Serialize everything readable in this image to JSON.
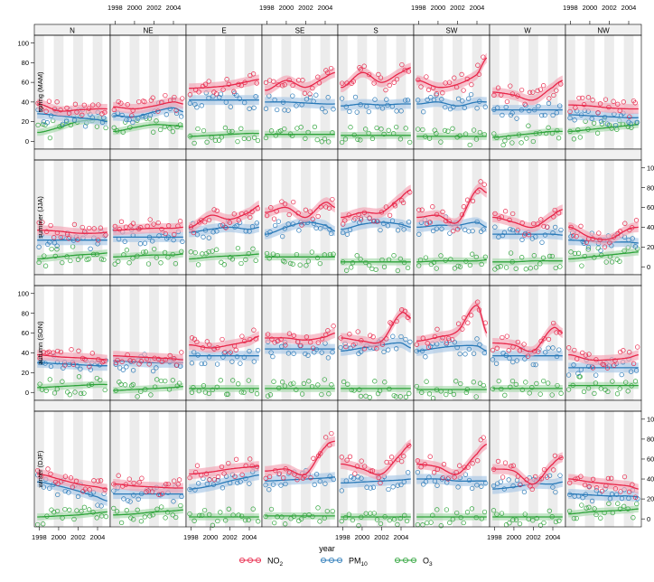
{
  "chart_data": {
    "type": "scatter",
    "description_type": "trellis scatter with smooth fits and confidence bands",
    "columns": [
      "N",
      "NE",
      "E",
      "SE",
      "S",
      "SW",
      "W",
      "NW"
    ],
    "rows": [
      "spring (MAM)",
      "summer (JJA)",
      "autumn (SON)",
      "winter (DJF)"
    ],
    "xlabel": "year",
    "x_ticks": [
      "1998",
      "2000",
      "2002",
      "2004"
    ],
    "xlim": [
      1997.5,
      2005.3
    ],
    "ylim": [
      -8,
      108
    ],
    "y_ticks": [
      "0",
      "20",
      "40",
      "60",
      "80",
      "100"
    ],
    "legend": {
      "placement": "bottom",
      "items": [
        {
          "base": "NO",
          "sub": "2",
          "key": "no2"
        },
        {
          "base": "PM",
          "sub": "10",
          "key": "pm10"
        },
        {
          "base": "O",
          "sub": "3",
          "key": "o3"
        }
      ]
    },
    "colors": {
      "no2": "#e8274a",
      "pm10": "#2a7ab8",
      "o3": "#2ea33a",
      "no2_band": "#f4a3b3",
      "pm10_band": "#a9c8e6",
      "o3_band": "#a6d9aa",
      "strip": "#f0f0f0",
      "stripe": "#ececec"
    },
    "trend_knots_x": [
      1998,
      2000,
      2002,
      2004,
      2005
    ],
    "panels": [
      {
        "row": 0,
        "col": 0,
        "no2": [
          38,
          31,
          32,
          33,
          33
        ],
        "pm10": [
          28,
          26,
          24,
          22,
          20
        ],
        "o3": [
          9,
          14,
          20,
          22,
          21
        ]
      },
      {
        "row": 0,
        "col": 1,
        "no2": [
          35,
          33,
          36,
          40,
          38
        ],
        "pm10": [
          26,
          25,
          30,
          34,
          30
        ],
        "o3": [
          10,
          14,
          17,
          16,
          15
        ]
      },
      {
        "row": 0,
        "col": 2,
        "no2": [
          54,
          55,
          57,
          61,
          63
        ],
        "pm10": [
          42,
          42,
          42,
          42,
          42
        ],
        "o3": [
          5,
          6,
          7,
          8,
          8
        ]
      },
      {
        "row": 0,
        "col": 3,
        "no2": [
          52,
          62,
          55,
          65,
          70
        ],
        "pm10": [
          40,
          40,
          39,
          38,
          38
        ],
        "o3": [
          7,
          7,
          7,
          7,
          7
        ]
      },
      {
        "row": 0,
        "col": 4,
        "no2": [
          55,
          70,
          60,
          70,
          75
        ],
        "pm10": [
          36,
          38,
          37,
          38,
          38
        ],
        "o3": [
          6,
          6,
          6,
          6,
          6
        ]
      },
      {
        "row": 0,
        "col": 5,
        "no2": [
          62,
          55,
          58,
          68,
          85
        ],
        "pm10": [
          38,
          40,
          36,
          40,
          40
        ],
        "o3": [
          5,
          5,
          5,
          5,
          5
        ]
      },
      {
        "row": 0,
        "col": 6,
        "no2": [
          50,
          47,
          42,
          55,
          62
        ],
        "pm10": [
          32,
          32,
          32,
          32,
          32
        ],
        "o3": [
          4,
          6,
          8,
          10,
          10
        ]
      },
      {
        "row": 0,
        "col": 7,
        "no2": [
          37,
          36,
          34,
          33,
          33
        ],
        "pm10": [
          27,
          26,
          25,
          24,
          24
        ],
        "o3": [
          10,
          12,
          14,
          16,
          17
        ]
      },
      {
        "row": 1,
        "col": 0,
        "no2": [
          37,
          36,
          34,
          34,
          35
        ],
        "pm10": [
          27,
          27,
          27,
          27,
          27
        ],
        "o3": [
          8,
          10,
          12,
          13,
          14
        ]
      },
      {
        "row": 1,
        "col": 1,
        "no2": [
          37,
          38,
          39,
          39,
          40
        ],
        "pm10": [
          30,
          30,
          30,
          30,
          30
        ],
        "o3": [
          10,
          11,
          12,
          12,
          13
        ]
      },
      {
        "row": 1,
        "col": 2,
        "no2": [
          40,
          52,
          48,
          55,
          62
        ],
        "pm10": [
          35,
          38,
          40,
          38,
          40
        ],
        "o3": [
          8,
          10,
          11,
          12,
          13
        ]
      },
      {
        "row": 1,
        "col": 3,
        "no2": [
          55,
          60,
          50,
          65,
          60
        ],
        "pm10": [
          33,
          40,
          45,
          42,
          36
        ],
        "o3": [
          10,
          10,
          10,
          10,
          10
        ]
      },
      {
        "row": 1,
        "col": 4,
        "no2": [
          50,
          55,
          55,
          70,
          78
        ],
        "pm10": [
          38,
          43,
          45,
          43,
          40
        ],
        "o3": [
          5,
          5,
          5,
          5,
          5
        ]
      },
      {
        "row": 1,
        "col": 5,
        "no2": [
          50,
          52,
          45,
          78,
          75
        ],
        "pm10": [
          40,
          42,
          42,
          45,
          40
        ],
        "o3": [
          5,
          6,
          6,
          6,
          7
        ]
      },
      {
        "row": 1,
        "col": 6,
        "no2": [
          50,
          45,
          40,
          52,
          58
        ],
        "pm10": [
          33,
          33,
          33,
          33,
          32
        ],
        "o3": [
          5,
          5,
          6,
          6,
          6
        ]
      },
      {
        "row": 1,
        "col": 7,
        "no2": [
          40,
          30,
          28,
          38,
          40
        ],
        "pm10": [
          27,
          26,
          25,
          25,
          24
        ],
        "o3": [
          8,
          10,
          12,
          14,
          15
        ]
      },
      {
        "row": 2,
        "col": 0,
        "no2": [
          38,
          36,
          35,
          34,
          33
        ],
        "pm10": [
          30,
          29,
          28,
          27,
          27
        ],
        "o3": [
          5,
          6,
          7,
          8,
          8
        ]
      },
      {
        "row": 2,
        "col": 1,
        "no2": [
          37,
          36,
          35,
          34,
          33
        ],
        "pm10": [
          32,
          31,
          30,
          30,
          30
        ],
        "o3": [
          2,
          3,
          4,
          5,
          6
        ]
      },
      {
        "row": 2,
        "col": 2,
        "no2": [
          48,
          45,
          48,
          52,
          57
        ],
        "pm10": [
          37,
          37,
          37,
          37,
          37
        ],
        "o3": [
          4,
          4,
          4,
          4,
          4
        ]
      },
      {
        "row": 2,
        "col": 3,
        "no2": [
          55,
          55,
          53,
          56,
          60
        ],
        "pm10": [
          44,
          44,
          44,
          44,
          44
        ],
        "o3": [
          4,
          4,
          4,
          4,
          4
        ]
      },
      {
        "row": 2,
        "col": 4,
        "no2": [
          55,
          52,
          52,
          80,
          75
        ],
        "pm10": [
          42,
          45,
          48,
          50,
          45
        ],
        "o3": [
          4,
          4,
          4,
          4,
          4
        ]
      },
      {
        "row": 2,
        "col": 5,
        "no2": [
          52,
          56,
          62,
          88,
          60
        ],
        "pm10": [
          42,
          45,
          47,
          47,
          42
        ],
        "o3": [
          3,
          3,
          3,
          3,
          3
        ]
      },
      {
        "row": 2,
        "col": 6,
        "no2": [
          50,
          48,
          42,
          65,
          60
        ],
        "pm10": [
          37,
          37,
          37,
          37,
          37
        ],
        "o3": [
          4,
          4,
          4,
          4,
          4
        ]
      },
      {
        "row": 2,
        "col": 7,
        "no2": [
          38,
          33,
          33,
          35,
          38
        ],
        "pm10": [
          25,
          25,
          25,
          25,
          25
        ],
        "o3": [
          7,
          7,
          7,
          7,
          7
        ]
      },
      {
        "row": 3,
        "col": 0,
        "no2": [
          45,
          40,
          35,
          32,
          30
        ],
        "pm10": [
          37,
          33,
          28,
          22,
          18
        ],
        "o3": [
          2,
          3,
          4,
          6,
          7
        ]
      },
      {
        "row": 3,
        "col": 1,
        "no2": [
          35,
          33,
          32,
          31,
          31
        ],
        "pm10": [
          25,
          25,
          25,
          25,
          25
        ],
        "o3": [
          4,
          5,
          7,
          8,
          9
        ]
      },
      {
        "row": 3,
        "col": 2,
        "no2": [
          45,
          47,
          50,
          52,
          53
        ],
        "pm10": [
          30,
          33,
          38,
          42,
          44
        ],
        "o3": [
          2,
          2,
          2,
          2,
          2
        ]
      },
      {
        "row": 3,
        "col": 3,
        "no2": [
          48,
          50,
          45,
          72,
          78
        ],
        "pm10": [
          38,
          39,
          40,
          41,
          42
        ],
        "o3": [
          3,
          3,
          3,
          3,
          3
        ]
      },
      {
        "row": 3,
        "col": 4,
        "no2": [
          55,
          50,
          45,
          65,
          75
        ],
        "pm10": [
          36,
          37,
          38,
          39,
          40
        ],
        "o3": [
          2,
          2,
          2,
          2,
          2
        ]
      },
      {
        "row": 3,
        "col": 5,
        "no2": [
          55,
          52,
          45,
          65,
          75
        ],
        "pm10": [
          40,
          40,
          38,
          38,
          38
        ],
        "o3": [
          2,
          2,
          2,
          2,
          2
        ]
      },
      {
        "row": 3,
        "col": 6,
        "no2": [
          50,
          48,
          35,
          55,
          62
        ],
        "pm10": [
          30,
          32,
          35,
          35,
          37
        ],
        "o3": [
          2,
          2,
          2,
          2,
          2
        ]
      },
      {
        "row": 3,
        "col": 7,
        "no2": [
          40,
          37,
          35,
          33,
          30
        ],
        "pm10": [
          25,
          24,
          23,
          23,
          22
        ],
        "o3": [
          5,
          7,
          8,
          9,
          10
        ]
      }
    ]
  }
}
